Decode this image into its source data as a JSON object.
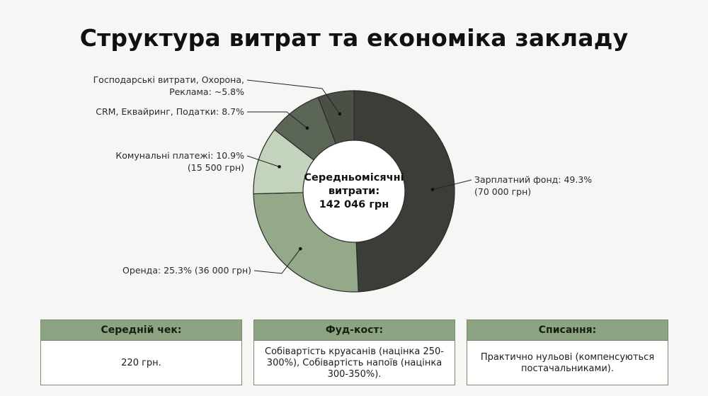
{
  "title": "Структура витрат та економіка закладу",
  "chart_data": {
    "type": "pie",
    "variant": "donut",
    "center_label": [
      "Середньомісячні",
      "витрати:",
      "142 046 грн"
    ],
    "slices": [
      {
        "label": [
          "Зарплатний фонд: 49.3%",
          "(70 000 грн)"
        ],
        "percent": 49.3,
        "amount_uah": 70000,
        "color": "#3a3e37"
      },
      {
        "label": [
          "Оренда: 25.3% (36 000 грн)"
        ],
        "percent": 25.3,
        "amount_uah": 36000,
        "color": "#94a98a"
      },
      {
        "label": [
          "Комунальні платежі: 10.9%",
          "(15 500 грн)"
        ],
        "percent": 10.9,
        "amount_uah": 15500,
        "color": "#c4d3bc"
      },
      {
        "label": [
          "CRM, Еквайринг, Податки: 8.7%"
        ],
        "percent": 8.7,
        "color": "#5c6656"
      },
      {
        "label": [
          "Господарські витрати, Охорона,",
          "Реклама: ~5.8%"
        ],
        "percent": 5.8,
        "color": "#4a5045"
      }
    ]
  },
  "cards": [
    {
      "header": "Середній чек:",
      "body": "220 грн."
    },
    {
      "header": "Фуд-кост:",
      "body": "Собівартість круасанів (націнка 250-300%), Собівартість напоїв (націнка 300-350%)."
    },
    {
      "header": "Списання:",
      "body": "Практично нульові (компенсуються постачальниками)."
    }
  ]
}
